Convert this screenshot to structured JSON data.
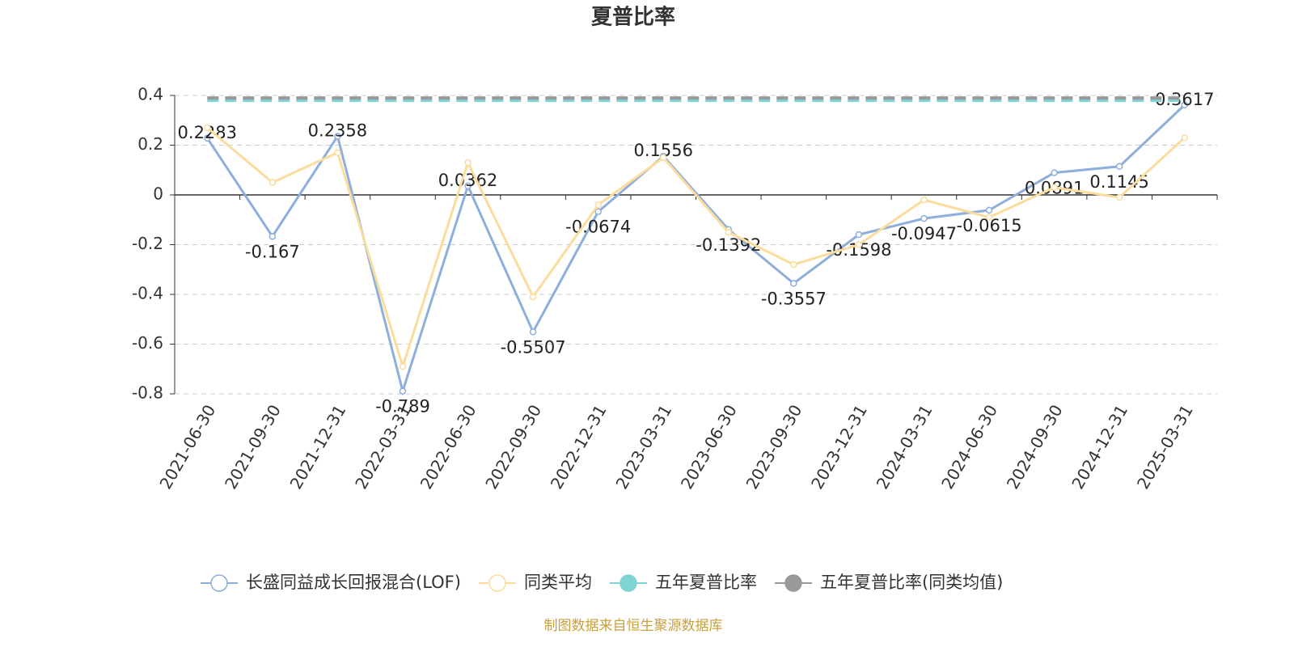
{
  "chart_data": {
    "type": "line",
    "title": "夏普比率",
    "categories": [
      "2021-06-30",
      "2021-09-30",
      "2021-12-31",
      "2022-03-31",
      "2022-06-30",
      "2022-09-30",
      "2022-12-31",
      "2023-03-31",
      "2023-06-30",
      "2023-09-30",
      "2023-12-31",
      "2024-03-31",
      "2024-06-30",
      "2024-09-30",
      "2024-12-31",
      "2025-03-31"
    ],
    "series": [
      {
        "name": "长盛同益成长回报混合(LOF)",
        "color": "#8eaedb",
        "values": [
          0.2283,
          -0.167,
          0.2358,
          -0.789,
          0.0362,
          -0.5507,
          -0.0674,
          0.1556,
          -0.1392,
          -0.3557,
          -0.1598,
          -0.0947,
          -0.0615,
          0.0891,
          0.1145,
          0.3617
        ],
        "data_labels": true
      },
      {
        "name": "同类平均",
        "color": "#fbdc9c",
        "values": [
          0.27,
          0.05,
          0.17,
          -0.69,
          0.13,
          -0.41,
          -0.04,
          0.15,
          -0.15,
          -0.28,
          -0.2,
          -0.02,
          -0.09,
          0.03,
          -0.01,
          0.23
        ]
      },
      {
        "name": "五年夏普比率",
        "color": "#7fd3d3",
        "value": 0.38
      },
      {
        "name": "五年夏普比率(同类均值)",
        "color": "#999999",
        "value": 0.39
      }
    ],
    "ylim": [
      -0.8,
      0.4
    ],
    "yticks": [
      0.4,
      0.2,
      0,
      -0.2,
      -0.4,
      -0.6,
      -0.8
    ],
    "grid": true,
    "source": "制图数据来自恒生聚源数据库"
  }
}
